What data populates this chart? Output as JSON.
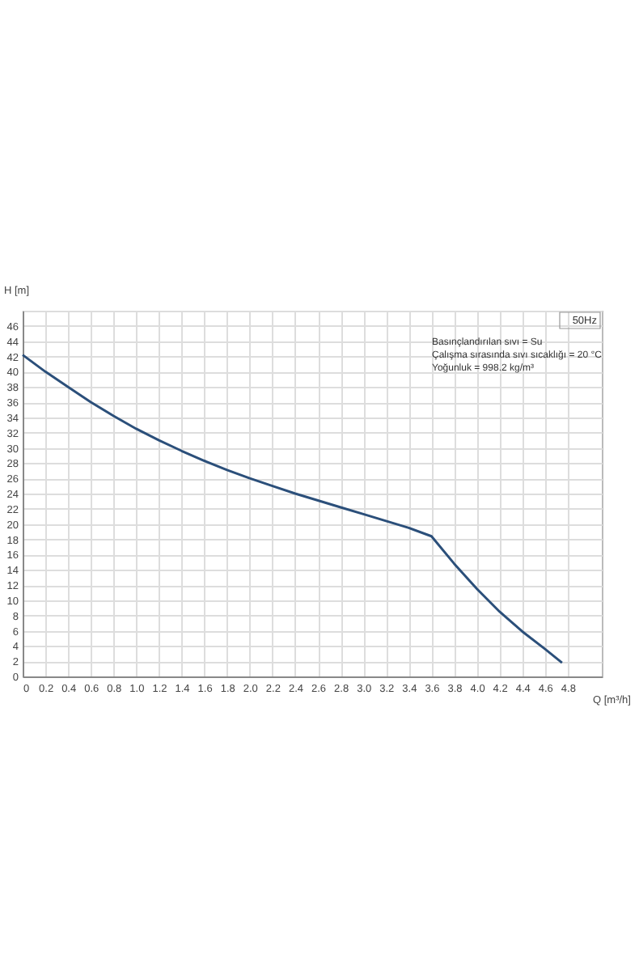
{
  "chart_data": {
    "type": "line",
    "title": "50Hz",
    "xlabel": "Q [m³/h]",
    "ylabel": "H [m]",
    "annotations": [
      "Basınçlandırılan sıvı = Su",
      "Çalışma sırasında sıvı sıcaklığı = 20 °C",
      "Yoğunluk = 998.2 kg/m³"
    ],
    "x": [
      0,
      0.2,
      0.4,
      0.6,
      0.8,
      1.0,
      1.2,
      1.4,
      1.6,
      1.8,
      2.0,
      2.2,
      2.4,
      2.6,
      2.8,
      3.0,
      3.2,
      3.4,
      3.6,
      3.8,
      4.0,
      4.2,
      4.4,
      4.6,
      4.75
    ],
    "series": [
      {
        "color": "#2b4f7a",
        "values": [
          42.2,
          40.0,
          38.0,
          36.0,
          34.2,
          32.5,
          31.0,
          29.6,
          28.3,
          27.1,
          26.0,
          25.0,
          24.0,
          23.1,
          22.2,
          21.3,
          20.4,
          19.5,
          18.4,
          14.8,
          11.5,
          8.5,
          5.9,
          3.6,
          1.8
        ]
      }
    ],
    "xlim": [
      0,
      5.1
    ],
    "xticks": [
      0,
      0.2,
      0.4,
      0.6,
      0.8,
      "1.0",
      1.2,
      1.4,
      1.6,
      1.8,
      "2.0",
      2.2,
      2.4,
      2.6,
      2.8,
      "3.0",
      3.2,
      3.4,
      3.6,
      3.8,
      "4.0",
      4.2,
      4.4,
      4.6,
      4.8
    ],
    "ylim": [
      0,
      48
    ],
    "yticks": [
      0,
      2,
      4,
      6,
      8,
      10,
      12,
      14,
      16,
      18,
      20,
      22,
      24,
      26,
      28,
      30,
      32,
      34,
      36,
      38,
      40,
      42,
      44,
      46,
      {
        "value": 48,
        "label": null
      }
    ],
    "grid": true,
    "marker": "none",
    "line_style": "solid"
  }
}
